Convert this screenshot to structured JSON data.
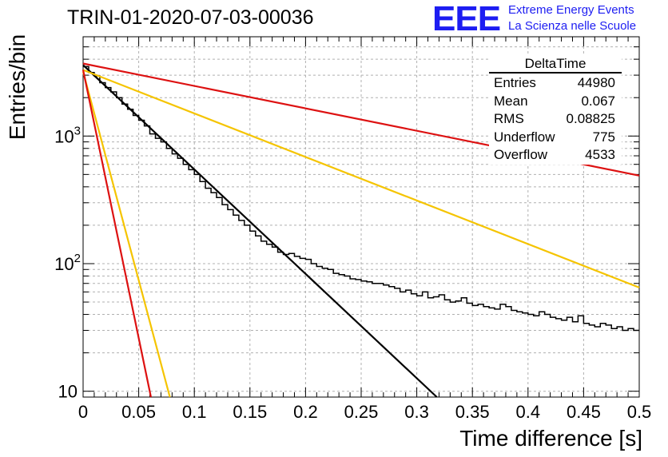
{
  "title": "TRIN-01-2020-07-03-00036",
  "logo": {
    "mark": "EEE",
    "line1": "Extreme Energy Events",
    "line2": "La Scienza nelle Scuole",
    "color": "#1d1df2"
  },
  "stats": {
    "name": "DeltaTime",
    "rows": [
      {
        "label": "Entries",
        "value": "44980"
      },
      {
        "label": "Mean",
        "value": "0.067"
      },
      {
        "label": "RMS",
        "value": "0.08825"
      },
      {
        "label": "Underflow",
        "value": "775"
      },
      {
        "label": "Overflow",
        "value": "4533"
      }
    ]
  },
  "chart_data": {
    "type": "line",
    "title": "TRIN-01-2020-07-03-00036",
    "xlabel": "Time difference [s]",
    "ylabel": "Entries/bin",
    "xlim": [
      0,
      0.5
    ],
    "ylim": [
      9,
      6000
    ],
    "yscale": "log",
    "grid": true,
    "legend": "top-right stats box",
    "xticks": [
      "0",
      "0.05",
      "0.1",
      "0.15",
      "0.2",
      "0.25",
      "0.3",
      "0.35",
      "0.4",
      "0.45",
      "0.5"
    ],
    "yticks": [
      {
        "value": 10,
        "label": "10",
        "exp": ""
      },
      {
        "value": 100,
        "label": "10",
        "exp": "2"
      },
      {
        "value": 1000,
        "label": "10",
        "exp": "3"
      }
    ],
    "histogram": {
      "color": "#000000",
      "bin_width": 0.005,
      "values": [
        3500,
        3150,
        2960,
        2620,
        2400,
        2220,
        2000,
        1780,
        1620,
        1450,
        1330,
        1200,
        1040,
        960,
        900,
        800,
        725,
        670,
        600,
        545,
        500,
        440,
        390,
        360,
        330,
        290,
        265,
        240,
        218,
        200,
        180,
        165,
        150,
        142,
        135,
        123,
        118,
        120,
        114,
        110,
        108,
        100,
        95,
        92,
        90,
        84,
        82,
        80,
        76,
        75,
        73,
        72,
        70,
        70,
        68,
        66,
        64,
        60,
        62,
        58,
        56,
        60,
        54,
        55,
        57,
        52,
        50,
        51,
        54,
        49,
        47,
        48,
        46,
        45,
        44,
        48,
        46,
        43,
        42,
        41,
        40,
        39,
        42,
        40,
        38,
        37,
        36,
        38,
        35,
        39,
        34,
        33,
        32,
        34,
        33,
        31,
        32,
        30,
        31,
        30
      ]
    },
    "series": [
      {
        "color": "#000000",
        "x": [
          0,
          0.318
        ],
        "y": [
          3600,
          9
        ]
      },
      {
        "color": "#f5c400",
        "x": [
          0,
          0.078
        ],
        "y": [
          3200,
          9
        ]
      },
      {
        "color": "#f5c400",
        "x": [
          0,
          0.5
        ],
        "y": [
          3300,
          65
        ]
      },
      {
        "color": "#dd1111",
        "x": [
          0,
          0.061
        ],
        "y": [
          3300,
          9
        ]
      },
      {
        "color": "#dd1111",
        "x": [
          0,
          0.5
        ],
        "y": [
          3700,
          490
        ]
      }
    ]
  }
}
